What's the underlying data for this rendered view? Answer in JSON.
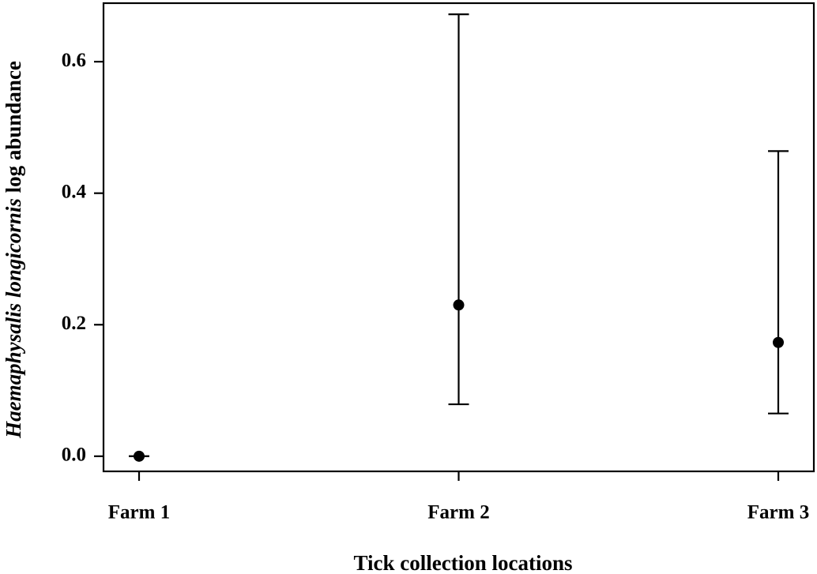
{
  "chart_data": {
    "type": "errorpoint",
    "x_label": "Tick collection locations",
    "y_label": {
      "italic": "Haemaphysalis longicornis",
      "rest": "log abundance"
    },
    "categories": [
      "Farm 1",
      "Farm 2",
      "Farm 3"
    ],
    "values": [
      0.0,
      0.23,
      0.173
    ],
    "lower": [
      0.0,
      0.079,
      0.065
    ],
    "upper": [
      0.0,
      0.672,
      0.464
    ],
    "color": "#000000",
    "ylim": [
      -0.023,
      0.689
    ],
    "yticks": [
      {
        "value": 0,
        "label": "0.0"
      },
      0.2,
      0.4,
      0.6
    ],
    "grid": false
  }
}
